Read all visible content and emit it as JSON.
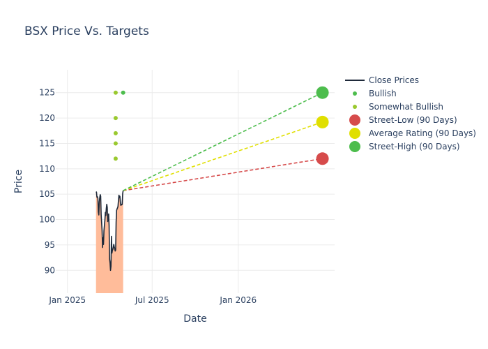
{
  "chart_data": {
    "type": "line",
    "title": "BSX Price Vs. Targets",
    "xlabel": "Date",
    "ylabel": "Price",
    "xlim": [
      "2024-12-07",
      "2026-07-26"
    ],
    "ylim": [
      85.5,
      129.5
    ],
    "x_ticks": [
      {
        "date": "2025-01-01",
        "label": "Jan 2025"
      },
      {
        "date": "2025-07-01",
        "label": "Jul 2025"
      },
      {
        "date": "2026-01-01",
        "label": "Jan 2026"
      }
    ],
    "y_ticks": [
      90,
      95,
      100,
      105,
      110,
      115,
      120,
      125
    ],
    "grid": true,
    "legend_position": "right",
    "series": [
      {
        "name": "Close Prices",
        "kind": "line_with_area",
        "color": "#1f2a3a",
        "fill_color": "#ffbc9a",
        "points": [
          [
            "2025-03-03",
            105.5
          ],
          [
            "2025-03-04",
            105.4
          ],
          [
            "2025-03-05",
            104.4
          ],
          [
            "2025-03-06",
            104.5
          ],
          [
            "2025-03-07",
            104.2
          ],
          [
            "2025-03-08",
            101.5
          ],
          [
            "2025-03-09",
            100.9
          ],
          [
            "2025-03-10",
            103.5
          ],
          [
            "2025-03-11",
            104.3
          ],
          [
            "2025-03-12",
            104.9
          ],
          [
            "2025-03-13",
            104.6
          ],
          [
            "2025-03-14",
            101.0
          ],
          [
            "2025-03-16",
            97.8
          ],
          [
            "2025-03-17",
            94.5
          ],
          [
            "2025-03-18",
            96.4
          ],
          [
            "2025-03-19",
            95.1
          ],
          [
            "2025-03-20",
            97.8
          ],
          [
            "2025-03-22",
            99.9
          ],
          [
            "2025-03-23",
            101.4
          ],
          [
            "2025-03-24",
            100.8
          ],
          [
            "2025-03-25",
            102.2
          ],
          [
            "2025-03-26",
            103.0
          ],
          [
            "2025-03-27",
            102.4
          ],
          [
            "2025-03-28",
            99.6
          ],
          [
            "2025-03-29",
            100.7
          ],
          [
            "2025-03-30",
            101.1
          ],
          [
            "2025-03-31",
            98.8
          ],
          [
            "2025-04-01",
            92.2
          ],
          [
            "2025-04-02",
            91.5
          ],
          [
            "2025-04-03",
            90.0
          ],
          [
            "2025-04-04",
            90.8
          ],
          [
            "2025-04-05",
            96.7
          ],
          [
            "2025-04-06",
            93.4
          ],
          [
            "2025-04-07",
            93.9
          ],
          [
            "2025-04-08",
            94.1
          ],
          [
            "2025-04-09",
            94.6
          ],
          [
            "2025-04-10",
            95.1
          ],
          [
            "2025-04-11",
            94.6
          ],
          [
            "2025-04-12",
            94.3
          ],
          [
            "2025-04-13",
            93.8
          ],
          [
            "2025-04-14",
            94.0
          ],
          [
            "2025-04-15",
            99.5
          ],
          [
            "2025-04-16",
            101.8
          ],
          [
            "2025-04-17",
            102.1
          ],
          [
            "2025-04-18",
            102.3
          ],
          [
            "2025-04-19",
            102.6
          ],
          [
            "2025-04-20",
            103.8
          ],
          [
            "2025-04-21",
            104.8
          ],
          [
            "2025-04-22",
            104.3
          ],
          [
            "2025-04-23",
            104.6
          ],
          [
            "2025-04-24",
            103.5
          ],
          [
            "2025-04-25",
            102.8
          ],
          [
            "2025-04-26",
            103.0
          ],
          [
            "2025-04-27",
            102.9
          ],
          [
            "2025-04-28",
            103.0
          ],
          [
            "2025-04-29",
            105.1
          ],
          [
            "2025-04-30",
            105.7
          ]
        ]
      },
      {
        "name": "Bullish",
        "kind": "markers",
        "color": "#4dbd4d",
        "points": [
          [
            "2025-04-30",
            125
          ]
        ]
      },
      {
        "name": "Somewhat Bullish",
        "kind": "markers",
        "color": "#9ac92f",
        "points": [
          [
            "2025-04-14",
            125
          ],
          [
            "2025-04-14",
            120
          ],
          [
            "2025-04-14",
            117
          ],
          [
            "2025-04-14",
            115
          ],
          [
            "2025-04-14",
            112
          ]
        ]
      },
      {
        "name": "Street-Low (90 Days)",
        "kind": "target",
        "color": "#d64b4b",
        "start": [
          "2025-04-30",
          105.7
        ],
        "end": [
          "2026-06-30",
          112
        ]
      },
      {
        "name": "Average Rating (90 Days)",
        "kind": "target",
        "color": "#e0df00",
        "start": [
          "2025-04-30",
          105.7
        ],
        "end": [
          "2026-06-30",
          119.2
        ]
      },
      {
        "name": "Street-High (90 Days)",
        "kind": "target",
        "color": "#4dbd4d",
        "start": [
          "2025-04-30",
          105.7
        ],
        "end": [
          "2026-06-30",
          125
        ]
      }
    ]
  }
}
